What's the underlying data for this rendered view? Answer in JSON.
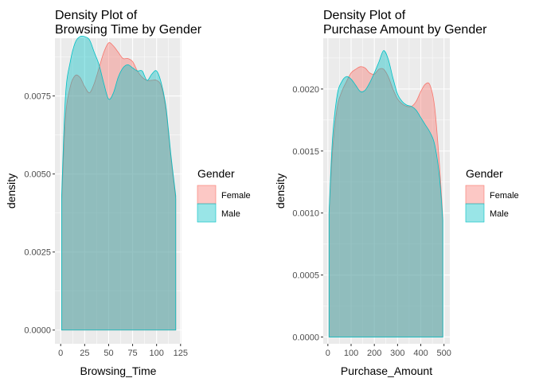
{
  "chart_data": [
    {
      "type": "area",
      "title_lines": [
        "Density Plot of",
        "Browsing Time by Gender"
      ],
      "xlabel": "Browsing_Time",
      "ylabel": "density",
      "xlim": [
        -6,
        126
      ],
      "ylim": [
        -0.00044,
        0.00935
      ],
      "xticks": [
        0,
        25,
        50,
        75,
        100,
        125
      ],
      "xtick_labels": [
        "0",
        "25",
        "50",
        "75",
        "100",
        "125"
      ],
      "yticks": [
        0,
        0.0025,
        0.005,
        0.0075
      ],
      "ytick_labels": [
        "0.0000",
        "0.0025",
        "0.0050",
        "0.0075"
      ],
      "grid": true,
      "legend": {
        "title": "Gender",
        "position": "right",
        "entries": [
          "Female",
          "Male"
        ]
      },
      "series": [
        {
          "name": "Female",
          "color": "#F8766D",
          "x": [
            1,
            5,
            10,
            15,
            20,
            25,
            30,
            35,
            40,
            45,
            50,
            55,
            60,
            65,
            70,
            75,
            80,
            85,
            90,
            95,
            100,
            105,
            110,
            115,
            120
          ],
          "y": [
            0.0041,
            0.0068,
            0.0078,
            0.00815,
            0.0081,
            0.0078,
            0.0076,
            0.0079,
            0.0084,
            0.0089,
            0.0092,
            0.0091,
            0.0089,
            0.0087,
            0.0087,
            0.0086,
            0.0083,
            0.0081,
            0.008,
            0.008,
            0.008,
            0.0078,
            0.007,
            0.0055,
            0.0042
          ]
        },
        {
          "name": "Male",
          "color": "#00BFC4",
          "x": [
            1,
            5,
            10,
            15,
            20,
            25,
            30,
            35,
            40,
            45,
            50,
            55,
            60,
            65,
            70,
            75,
            80,
            85,
            90,
            95,
            100,
            105,
            110,
            115,
            120
          ],
          "y": [
            0.0043,
            0.0075,
            0.0086,
            0.0092,
            0.0094,
            0.0094,
            0.0093,
            0.0089,
            0.0085,
            0.0079,
            0.0074,
            0.0076,
            0.0081,
            0.0084,
            0.0085,
            0.0084,
            0.0083,
            0.0083,
            0.008,
            0.0082,
            0.0083,
            0.0079,
            0.0071,
            0.0056,
            0.0043
          ]
        }
      ]
    },
    {
      "type": "area",
      "title_lines": [
        "Density Plot of",
        "Purchase Amount by Gender"
      ],
      "xlabel": "Purchase_Amount",
      "ylabel": "density",
      "xlim": [
        -20,
        525
      ],
      "ylim": [
        -5.5e-05,
        0.00241
      ],
      "xticks": [
        0,
        100,
        200,
        300,
        400,
        500
      ],
      "xtick_labels": [
        "0",
        "100",
        "200",
        "300",
        "400",
        "500"
      ],
      "yticks": [
        0,
        0.0005,
        0.001,
        0.0015,
        0.002
      ],
      "ytick_labels": [
        "0.0000",
        "0.0005",
        "0.0010",
        "0.0015",
        "0.0020"
      ],
      "grid": true,
      "legend": {
        "title": "Gender",
        "position": "right",
        "entries": [
          "Female",
          "Male"
        ]
      },
      "series": [
        {
          "name": "Female",
          "color": "#F8766D",
          "x": [
            5,
            20,
            40,
            60,
            80,
            100,
            120,
            140,
            160,
            180,
            200,
            220,
            240,
            260,
            280,
            300,
            320,
            340,
            360,
            380,
            400,
            420,
            440,
            460,
            480,
            495
          ],
          "y": [
            0.001,
            0.0015,
            0.00185,
            0.00198,
            0.00206,
            0.00213,
            0.00216,
            0.00218,
            0.00217,
            0.00213,
            0.00212,
            0.00216,
            0.00216,
            0.0021,
            0.002,
            0.00192,
            0.00188,
            0.00186,
            0.00186,
            0.0019,
            0.00198,
            0.00204,
            0.00203,
            0.00185,
            0.0014,
            0.00096
          ]
        },
        {
          "name": "Male",
          "color": "#00BFC4",
          "x": [
            5,
            20,
            40,
            60,
            80,
            100,
            120,
            140,
            160,
            180,
            200,
            220,
            240,
            260,
            280,
            300,
            320,
            340,
            360,
            380,
            400,
            420,
            440,
            460,
            480,
            495
          ],
          "y": [
            0.001,
            0.0016,
            0.00195,
            0.00206,
            0.0021,
            0.00208,
            0.00203,
            0.00198,
            0.00199,
            0.00205,
            0.00213,
            0.00222,
            0.00231,
            0.00224,
            0.00209,
            0.00196,
            0.0019,
            0.00187,
            0.00186,
            0.00183,
            0.00177,
            0.00171,
            0.00165,
            0.00155,
            0.0013,
            0.00094
          ]
        }
      ]
    }
  ]
}
